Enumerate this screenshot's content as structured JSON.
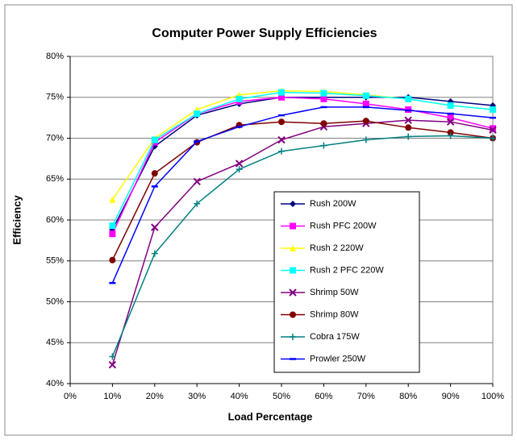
{
  "chart_data": {
    "type": "line",
    "title": "Computer Power Supply Efficiencies",
    "xlabel": "Load Percentage",
    "ylabel": "Efficiency",
    "x": [
      10,
      20,
      30,
      40,
      50,
      60,
      70,
      80,
      90,
      100
    ],
    "xlim": [
      0,
      100
    ],
    "xticks": [
      {
        "value": 0,
        "label": "0%"
      },
      {
        "value": 10,
        "label": "10%"
      },
      {
        "value": 20,
        "label": "20%"
      },
      {
        "value": 30,
        "label": "30%"
      },
      {
        "value": 40,
        "label": "40%"
      },
      {
        "value": 50,
        "label": "50%"
      },
      {
        "value": 60,
        "label": "60%"
      },
      {
        "value": 70,
        "label": "70%"
      },
      {
        "value": 80,
        "label": "80%"
      },
      {
        "value": 90,
        "label": "90%"
      },
      {
        "value": 100,
        "label": "100%"
      }
    ],
    "ylim": [
      40,
      80
    ],
    "yticks": [
      {
        "value": 40,
        "label": "40%"
      },
      {
        "value": 45,
        "label": "45%"
      },
      {
        "value": 50,
        "label": "50%"
      },
      {
        "value": 55,
        "label": "55%"
      },
      {
        "value": 60,
        "label": "60%"
      },
      {
        "value": 65,
        "label": "65%"
      },
      {
        "value": 70,
        "label": "70%"
      },
      {
        "value": 75,
        "label": "75%"
      },
      {
        "value": 80,
        "label": "80%"
      }
    ],
    "grid": true,
    "series": [
      {
        "name": "Rush 200W",
        "color": "#000080",
        "marker": "diamond",
        "values": [
          58.8,
          69,
          72.8,
          74.2,
          75,
          75,
          75,
          75,
          74.5,
          74
        ]
      },
      {
        "name": "Rush PFC 200W",
        "color": "#ff00ff",
        "marker": "square",
        "values": [
          58.3,
          69.5,
          73,
          74.5,
          75,
          74.8,
          74.2,
          73.5,
          72.5,
          71.2
        ]
      },
      {
        "name": "Rush 2 220W",
        "color": "#ffff00",
        "marker": "triangle",
        "values": [
          62.5,
          70,
          73.5,
          75.3,
          75.8,
          75.7,
          75.3,
          74.8,
          74,
          73.5
        ]
      },
      {
        "name": "Rush 2 PFC 220W",
        "color": "#00ffff",
        "marker": "square",
        "values": [
          59.3,
          69.8,
          73,
          74.8,
          75.6,
          75.5,
          75.2,
          74.8,
          74,
          73.5
        ]
      },
      {
        "name": "Shrimp 50W",
        "color": "#800080",
        "marker": "x",
        "values": [
          42.3,
          59.1,
          64.7,
          66.9,
          69.8,
          71.4,
          71.8,
          72.2,
          72,
          71
        ]
      },
      {
        "name": "Shrimp 80W",
        "color": "#800000",
        "marker": "circle",
        "values": [
          55.1,
          65.7,
          69.5,
          71.6,
          72,
          71.8,
          72.1,
          71.3,
          70.7,
          70
        ]
      },
      {
        "name": "Cobra 175W",
        "color": "#008080",
        "marker": "plus",
        "values": [
          43.3,
          55.9,
          62,
          66.2,
          68.4,
          69.1,
          69.8,
          70.2,
          70.3,
          70
        ]
      },
      {
        "name": "Prowler 250W",
        "color": "#0000ff",
        "marker": "dash",
        "values": [
          52.3,
          64.1,
          69.6,
          71.4,
          72.8,
          73.8,
          73.8,
          73.4,
          73,
          72.5
        ]
      }
    ]
  }
}
